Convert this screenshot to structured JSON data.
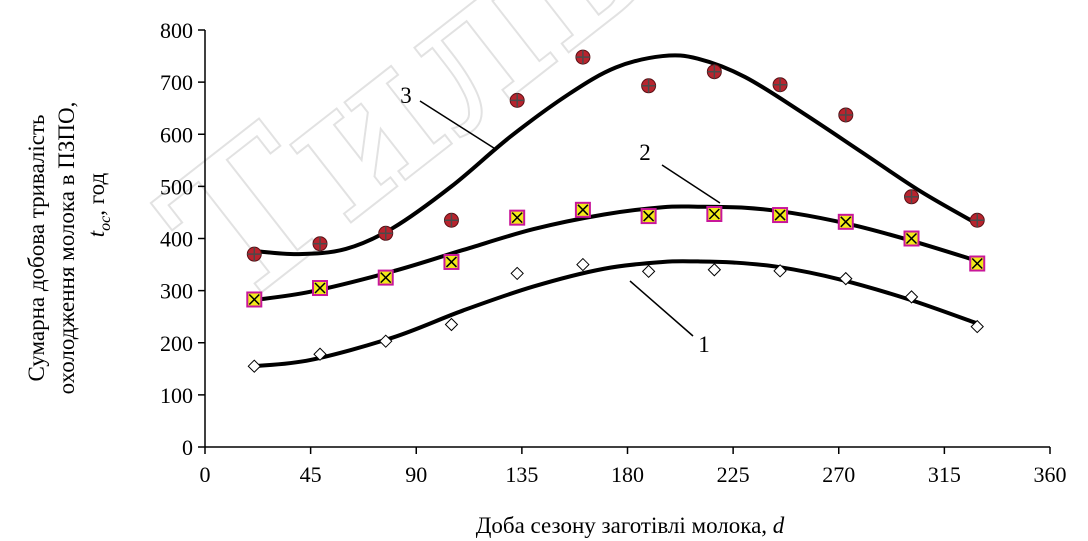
{
  "chart_data": {
    "type": "scatter",
    "xlabel_text": "Доба сезону заготівлі молока, ",
    "xlabel_var": "d",
    "ylabel_line1": "Сумарна добова тривалість",
    "ylabel_line2": "охолодження молока в ПЗПО,",
    "ylabel_var": "t",
    "ylabel_sub": "ос",
    "ylabel_unit": ", год",
    "xlim": [
      0,
      360
    ],
    "ylim": [
      0,
      800
    ],
    "xticks": [
      0,
      45,
      90,
      135,
      180,
      225,
      270,
      315,
      360
    ],
    "yticks": [
      0,
      100,
      200,
      300,
      400,
      500,
      600,
      700,
      800
    ],
    "grid": false,
    "series": [
      {
        "name": "1",
        "marker": "diamond",
        "x": [
          21,
          49,
          77,
          105,
          133,
          161,
          189,
          217,
          245,
          273,
          301,
          329
        ],
        "y": [
          155,
          178,
          203,
          235,
          333,
          350,
          337,
          340,
          338,
          323,
          288,
          231
        ],
        "fit_x": [
          21,
          45,
          80,
          110,
          140,
          170,
          195,
          210,
          225,
          245,
          270,
          300,
          329
        ],
        "fit_y": [
          155,
          167,
          210,
          262,
          308,
          342,
          355,
          356,
          354,
          345,
          322,
          283,
          237
        ]
      },
      {
        "name": "2",
        "marker": "square-x",
        "x": [
          21,
          49,
          77,
          105,
          133,
          161,
          189,
          217,
          245,
          273,
          301,
          329
        ],
        "y": [
          283,
          305,
          325,
          355,
          440,
          455,
          443,
          447,
          445,
          432,
          400,
          352
        ],
        "fit_x": [
          21,
          45,
          80,
          110,
          140,
          170,
          195,
          210,
          230,
          250,
          275,
          300,
          329
        ],
        "fit_y": [
          282,
          298,
          337,
          378,
          418,
          446,
          460,
          461,
          459,
          449,
          427,
          397,
          357
        ]
      },
      {
        "name": "3",
        "marker": "circle-plus",
        "x": [
          21,
          49,
          77,
          105,
          133,
          161,
          189,
          217,
          245,
          273,
          301,
          329
        ],
        "y": [
          370,
          390,
          410,
          435,
          665,
          748,
          693,
          720,
          695,
          637,
          480,
          435
        ],
        "fit_x": [
          21,
          40,
          60,
          80,
          105,
          130,
          155,
          175,
          195,
          210,
          230,
          255,
          280,
          305,
          329
        ],
        "fit_y": [
          376,
          370,
          380,
          420,
          500,
          595,
          677,
          728,
          750,
          745,
          710,
          640,
          565,
          490,
          428
        ]
      }
    ],
    "curve_labels": [
      {
        "series": "1",
        "text": "1"
      },
      {
        "series": "2",
        "text": "2"
      },
      {
        "series": "3",
        "text": "3"
      }
    ]
  },
  "colors": {
    "axis": "#000000",
    "curve": "#000000",
    "diamond_fill": "#ffffff",
    "square_fill": "#f2ea1a",
    "square_edge": "#c8179a",
    "circle_fill": "#b8242e",
    "circle_cross": "#4a4a4a",
    "watermark": "#cfcfcf"
  },
  "watermark_text": "Тиль"
}
